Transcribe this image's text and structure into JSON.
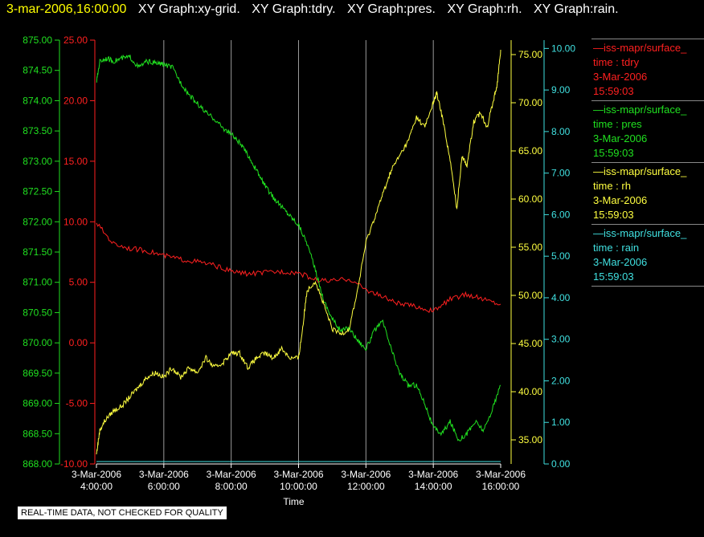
{
  "header": {
    "timestamp": "3-mar-2006,16:00:00",
    "titles": [
      "XY Graph:xy-grid.",
      "XY Graph:tdry.",
      "XY Graph:pres.",
      "XY Graph:rh.",
      "XY Graph:rain."
    ]
  },
  "legend": [
    {
      "name": "iss-mapr/surface_",
      "line2": "time : tdry",
      "line3": "3-Mar-2006",
      "line4": "15:59:03",
      "color": "#ff2020"
    },
    {
      "name": "iss-mapr/surface_",
      "line2": "time : pres",
      "line3": "3-Mar-2006",
      "line4": "15:59:03",
      "color": "#20e020"
    },
    {
      "name": "iss-mapr/surface_",
      "line2": "time : rh",
      "line3": "3-Mar-2006",
      "line4": "15:59:03",
      "color": "#ffff40"
    },
    {
      "name": "iss-mapr/surface_",
      "line2": "time : rain",
      "line3": "3-Mar-2006",
      "line4": "15:59:03",
      "color": "#40e0e0"
    }
  ],
  "warning": "REAL-TIME DATA, NOT CHECKED FOR QUALITY",
  "chart_data": {
    "type": "line",
    "xlabel": "Time",
    "xlim": [
      4,
      16
    ],
    "x_ticks": [
      {
        "x": 4,
        "line1": "3-Mar-2006",
        "line2": "4:00:00"
      },
      {
        "x": 6,
        "line1": "3-Mar-2006",
        "line2": "6:00:00"
      },
      {
        "x": 8,
        "line1": "3-Mar-2006",
        "line2": "8:00:00"
      },
      {
        "x": 10,
        "line1": "3-Mar-2006",
        "line2": "10:00:00"
      },
      {
        "x": 12,
        "line1": "3-Mar-2006",
        "line2": "12:00:00"
      },
      {
        "x": 14,
        "line1": "3-Mar-2006",
        "line2": "14:00:00"
      },
      {
        "x": 16,
        "line1": "3-Mar-2006",
        "line2": "16:00:00"
      }
    ],
    "grid": true,
    "axes": {
      "pres": {
        "range": [
          868,
          875
        ],
        "ticks": [
          "868.00",
          "868.50",
          "869.00",
          "869.50",
          "870.00",
          "870.50",
          "871.00",
          "871.50",
          "872.00",
          "872.50",
          "873.00",
          "873.50",
          "874.00",
          "874.50",
          "875.00"
        ],
        "color": "#20e020",
        "side": "left"
      },
      "tdry": {
        "range": [
          -10,
          25
        ],
        "ticks": [
          "-10.00",
          "-5.00",
          "0.00",
          "5.00",
          "10.00",
          "15.00",
          "20.00",
          "25.00"
        ],
        "color": "#ff2020",
        "side": "left"
      },
      "rh": {
        "range": [
          32.5,
          76.5
        ],
        "ticks": [
          "35.00",
          "40.00",
          "45.00",
          "50.00",
          "55.00",
          "60.00",
          "65.00",
          "70.00",
          "75.00"
        ],
        "color": "#ffff40",
        "side": "right"
      },
      "rain": {
        "range": [
          0,
          10.2
        ],
        "ticks": [
          "0.00",
          "1.00",
          "2.00",
          "3.00",
          "4.00",
          "5.00",
          "6.00",
          "7.00",
          "8.00",
          "9.00",
          "10.00"
        ],
        "color": "#40e0e0",
        "side": "right"
      }
    },
    "series": [
      {
        "name": "tdry",
        "axis": "tdry",
        "color": "#ff2020",
        "x": [
          4,
          4.5,
          5,
          5.5,
          6,
          6.5,
          7,
          7.5,
          8,
          8.5,
          9,
          9.5,
          10,
          10.5,
          11,
          11.5,
          12,
          12.5,
          13,
          13.5,
          14,
          14.5,
          15,
          15.5,
          16
        ],
        "y": [
          9.9,
          8.2,
          7.8,
          7.6,
          7.2,
          6.9,
          6.7,
          6.4,
          5.9,
          5.7,
          5.8,
          5.9,
          5.8,
          5.2,
          5.1,
          5.3,
          4.4,
          3.8,
          3.2,
          3.0,
          2.6,
          3.6,
          4.0,
          3.6,
          3.2
        ]
      },
      {
        "name": "pres",
        "axis": "pres",
        "color": "#20e020",
        "x": [
          4,
          4.1,
          4.3,
          4.5,
          4.75,
          5,
          5.25,
          5.5,
          5.75,
          6,
          6.25,
          6.5,
          6.75,
          7,
          7.25,
          7.5,
          7.75,
          8,
          8.25,
          8.5,
          8.75,
          9,
          9.25,
          9.5,
          9.75,
          10,
          10.25,
          10.5,
          10.75,
          11,
          11.25,
          11.5,
          11.75,
          12,
          12.25,
          12.5,
          12.75,
          13,
          13.25,
          13.5,
          13.75,
          14,
          14.25,
          14.5,
          14.75,
          15,
          15.25,
          15.5,
          15.75,
          16
        ],
        "y": [
          874.3,
          874.65,
          874.7,
          874.65,
          874.7,
          874.72,
          874.55,
          874.65,
          874.62,
          874.6,
          874.55,
          874.3,
          874.1,
          873.95,
          873.8,
          873.7,
          873.55,
          873.45,
          873.3,
          873.1,
          872.85,
          872.6,
          872.4,
          872.25,
          872.1,
          871.95,
          871.65,
          871.2,
          870.7,
          870.4,
          870.2,
          870.25,
          870.05,
          869.9,
          870.2,
          870.35,
          869.9,
          869.5,
          869.3,
          869.3,
          869.0,
          868.6,
          868.5,
          868.7,
          868.4,
          868.5,
          868.7,
          868.55,
          868.9,
          869.3
        ]
      },
      {
        "name": "rh",
        "axis": "rh",
        "color": "#ffff40",
        "x": [
          4,
          4.1,
          4.25,
          4.5,
          4.75,
          5,
          5.25,
          5.5,
          5.75,
          6,
          6.25,
          6.5,
          6.75,
          7,
          7.25,
          7.5,
          7.75,
          8,
          8.25,
          8.5,
          8.75,
          9,
          9.25,
          9.5,
          9.75,
          10,
          10.1,
          10.25,
          10.5,
          10.75,
          11,
          11.25,
          11.5,
          11.75,
          12,
          12.25,
          12.5,
          12.75,
          13,
          13.25,
          13.5,
          13.75,
          14,
          14.1,
          14.3,
          14.5,
          14.7,
          14.85,
          15,
          15.2,
          15.4,
          15.6,
          15.8,
          15.9,
          16
        ],
        "y": [
          33.5,
          36,
          37,
          38,
          38.5,
          39.5,
          40.5,
          41.5,
          42,
          41.5,
          42.5,
          41.5,
          42.5,
          42,
          43.5,
          42.5,
          43,
          44,
          44,
          42.5,
          43.5,
          44,
          43.5,
          44.5,
          43.5,
          43.5,
          46,
          50.5,
          51.5,
          49,
          46.5,
          46,
          46.5,
          50.5,
          55.5,
          58,
          60.5,
          63,
          64.5,
          66,
          68.5,
          67.5,
          70,
          71,
          68,
          64,
          59,
          64.5,
          63.5,
          68,
          69,
          67.5,
          70.5,
          72,
          75.5
        ]
      },
      {
        "name": "rain",
        "axis": "rain",
        "color": "#40e0e0",
        "x": [
          4,
          16
        ],
        "y": [
          0,
          0
        ]
      }
    ]
  }
}
